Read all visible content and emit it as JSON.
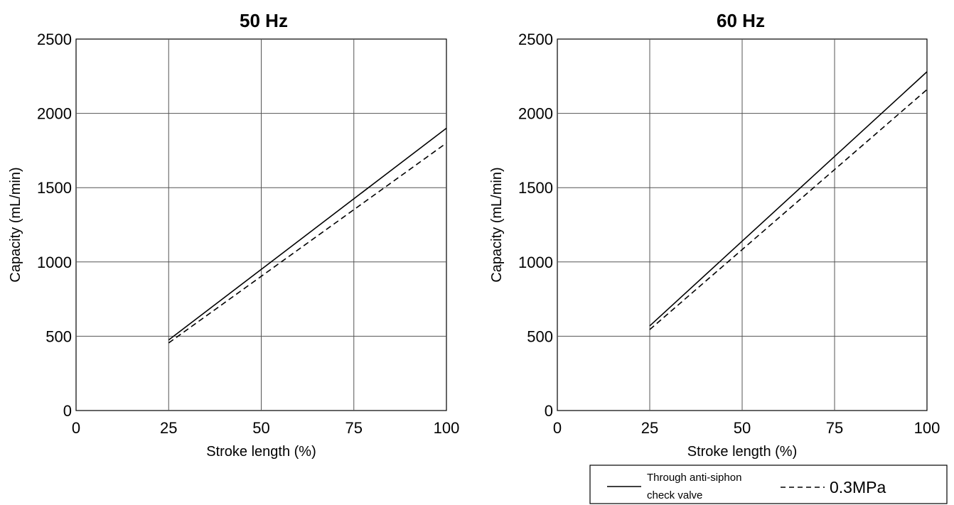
{
  "chart_data": [
    {
      "type": "line",
      "title": "50 Hz",
      "xlabel": "Stroke length (%)",
      "ylabel": "Capacity (mL/min)",
      "xlim": [
        0,
        100
      ],
      "ylim": [
        0,
        2500
      ],
      "x_ticks": [
        "0",
        "25",
        "50",
        "75",
        "100"
      ],
      "y_ticks": [
        "0",
        "500",
        "1000",
        "1500",
        "2000",
        "2500"
      ],
      "grid": true,
      "series": [
        {
          "name": "Through anti-siphon check valve",
          "style": "solid",
          "x": [
            25,
            100
          ],
          "y": [
            475,
            1900
          ]
        },
        {
          "name": "0.3MPa",
          "style": "dashed",
          "x": [
            25,
            100
          ],
          "y": [
            455,
            1800
          ]
        }
      ]
    },
    {
      "type": "line",
      "title": "60 Hz",
      "xlabel": "Stroke length (%)",
      "ylabel": "Capacity (mL/min)",
      "xlim": [
        0,
        100
      ],
      "ylim": [
        0,
        2500
      ],
      "x_ticks": [
        "0",
        "25",
        "50",
        "75",
        "100"
      ],
      "y_ticks": [
        "0",
        "500",
        "1000",
        "1500",
        "2000",
        "2500"
      ],
      "grid": true,
      "series": [
        {
          "name": "Through anti-siphon check valve",
          "style": "solid",
          "x": [
            25,
            100
          ],
          "y": [
            570,
            2280
          ]
        },
        {
          "name": "0.3MPa",
          "style": "dashed",
          "x": [
            25,
            100
          ],
          "y": [
            545,
            2160
          ]
        }
      ]
    }
  ],
  "legend": {
    "solid_label_line1": "Through anti-siphon",
    "solid_label_line2": "check valve",
    "dashed_label": "0.3MPa"
  }
}
